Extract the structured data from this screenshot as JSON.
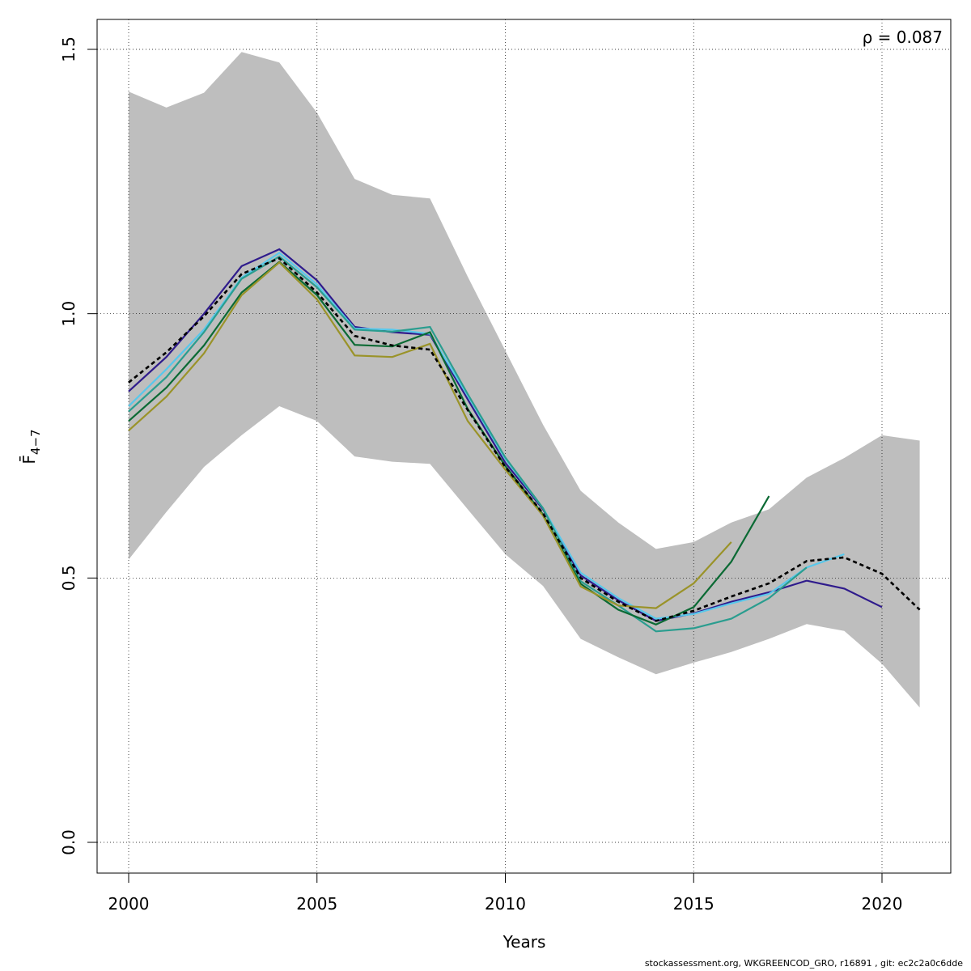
{
  "chart_data": {
    "type": "line",
    "title": "",
    "xlabel": "Years",
    "ylabel": "F̄",
    "ylabel_sub": "4−7",
    "annotation": "ρ = 0.087",
    "xlim": [
      2000,
      2021
    ],
    "ylim": [
      0,
      1.5
    ],
    "xticks": [
      2000,
      2005,
      2010,
      2015,
      2020
    ],
    "yticks": [
      0.0,
      0.5,
      1.0,
      1.5
    ],
    "ytick_labels": [
      "0.0",
      "0.5",
      "1.0",
      "1.5"
    ],
    "grid": true,
    "confidence_band": {
      "color": "#bebebe",
      "x": [
        2000,
        2001,
        2002,
        2003,
        2004,
        2005,
        2006,
        2007,
        2008,
        2009,
        2010,
        2011,
        2012,
        2013,
        2014,
        2015,
        2016,
        2017,
        2018,
        2019,
        2020,
        2021
      ],
      "lower": [
        0.535,
        0.625,
        0.71,
        0.77,
        0.825,
        0.797,
        0.73,
        0.72,
        0.716,
        0.63,
        0.545,
        0.485,
        0.385,
        0.35,
        0.318,
        0.34,
        0.36,
        0.385,
        0.413,
        0.4,
        0.338,
        0.255
      ],
      "upper": [
        1.42,
        1.39,
        1.418,
        1.495,
        1.475,
        1.38,
        1.255,
        1.225,
        1.218,
        1.07,
        0.93,
        0.79,
        0.665,
        0.605,
        0.555,
        0.568,
        0.605,
        0.63,
        0.69,
        0.727,
        0.77,
        0.76
      ]
    },
    "series": [
      {
        "color": "#000000",
        "dashed": true,
        "x": [
          2000,
          2001,
          2002,
          2003,
          2004,
          2005,
          2006,
          2007,
          2008,
          2009,
          2010,
          2011,
          2012,
          2013,
          2014,
          2015,
          2016,
          2017,
          2018,
          2019,
          2020,
          2021
        ],
        "values": [
          0.87,
          0.927,
          0.995,
          1.075,
          1.105,
          1.04,
          0.958,
          0.94,
          0.932,
          0.818,
          0.71,
          0.622,
          0.5,
          0.455,
          0.419,
          0.438,
          0.465,
          0.49,
          0.532,
          0.539,
          0.508,
          0.44
        ]
      },
      {
        "color": "#2f1b8c",
        "x": [
          2000,
          2001,
          2002,
          2003,
          2004,
          2005,
          2006,
          2007,
          2008,
          2009,
          2010,
          2011,
          2012,
          2013,
          2014,
          2015,
          2016,
          2017,
          2018,
          2019,
          2020
        ],
        "values": [
          0.853,
          0.918,
          1.0,
          1.09,
          1.122,
          1.063,
          0.975,
          0.965,
          0.96,
          0.838,
          0.718,
          0.63,
          0.505,
          0.458,
          0.419,
          0.433,
          0.455,
          0.473,
          0.495,
          0.48,
          0.445
        ]
      },
      {
        "color": "#58c8eb",
        "x": [
          2000,
          2001,
          2002,
          2003,
          2004,
          2005,
          2006,
          2007,
          2008,
          2009,
          2010,
          2011,
          2012,
          2013,
          2014,
          2015,
          2016,
          2017,
          2018,
          2019
        ],
        "values": [
          0.825,
          0.895,
          0.97,
          1.068,
          1.115,
          1.055,
          0.972,
          0.97,
          0.962,
          0.845,
          0.725,
          0.632,
          0.51,
          0.462,
          0.423,
          0.432,
          0.452,
          0.47,
          0.52,
          0.545
        ]
      },
      {
        "color": "#2a9d8f",
        "x": [
          2000,
          2001,
          2002,
          2003,
          2004,
          2005,
          2006,
          2007,
          2008,
          2009,
          2010,
          2011,
          2012,
          2013,
          2014,
          2015,
          2016,
          2017,
          2018
        ],
        "values": [
          0.815,
          0.88,
          0.965,
          1.066,
          1.108,
          1.05,
          0.97,
          0.966,
          0.975,
          0.848,
          0.728,
          0.632,
          0.494,
          0.448,
          0.399,
          0.405,
          0.423,
          0.462,
          0.52
        ]
      },
      {
        "color": "#0b6a34",
        "x": [
          2000,
          2001,
          2002,
          2003,
          2004,
          2005,
          2006,
          2007,
          2008,
          2009,
          2010,
          2011,
          2012,
          2013,
          2014,
          2015,
          2016,
          2017
        ],
        "values": [
          0.797,
          0.86,
          0.94,
          1.04,
          1.098,
          1.035,
          0.941,
          0.938,
          0.965,
          0.82,
          0.712,
          0.62,
          0.489,
          0.44,
          0.412,
          0.445,
          0.531,
          0.655
        ]
      },
      {
        "color": "#9a9329",
        "x": [
          2000,
          2001,
          2002,
          2003,
          2004,
          2005,
          2006,
          2007,
          2008,
          2009,
          2010,
          2011,
          2012,
          2013,
          2014,
          2015,
          2016
        ],
        "values": [
          0.779,
          0.843,
          0.925,
          1.035,
          1.097,
          1.027,
          0.921,
          0.918,
          0.943,
          0.797,
          0.705,
          0.618,
          0.484,
          0.448,
          0.443,
          0.49,
          0.568
        ]
      }
    ]
  },
  "footer": "stockassessment.org, WKGREENCOD_GRO, r16891 , git: ec2c2a0c6dde"
}
